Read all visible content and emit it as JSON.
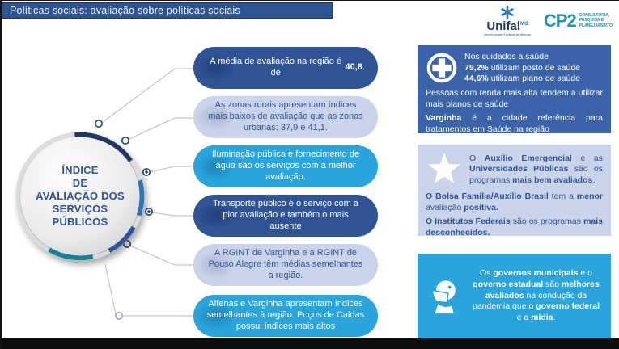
{
  "header": {
    "title": "Políticas sociais: avaliação sobre políticas sociais"
  },
  "logos": {
    "unifal": {
      "name": "Unifal",
      "sup": "MG",
      "subtitle": "Universidade Federal de Alfenas"
    },
    "cp2": {
      "name": "CP2",
      "subtitle": "CONSULTORIA,\nPESQUISA E\nPLANEJAMENTO"
    }
  },
  "hub": {
    "title": "ÍNDICE\nDE\nAVALIAÇÃO DOS\nSERVIÇOS\nPÚBLICOS"
  },
  "bubbles": [
    {
      "variant": "dark",
      "parts": [
        {
          "t": "A média de avaliação na região é de "
        },
        {
          "t": "40,8",
          "b": true
        },
        {
          "t": "."
        }
      ]
    },
    {
      "variant": "light",
      "parts": [
        {
          "t": "As zonas rurais apresentam índices mais baixos de avaliação que as zonas urbanas: 37,9 e 41,1."
        }
      ]
    },
    {
      "variant": "bright",
      "parts": [
        {
          "t": "Iluminação pública e fornecimento de água são os serviços com a melhor avaliação."
        }
      ]
    },
    {
      "variant": "dark",
      "parts": [
        {
          "t": "Transporte público é o serviço com a pior avaliação e também o mais ausente"
        }
      ]
    },
    {
      "variant": "light",
      "parts": [
        {
          "t": "A RGINT de Varginha e a RGINT de Pouso Alegre têm médias semelhantes a região."
        }
      ]
    },
    {
      "variant": "bright",
      "parts": [
        {
          "t": "Alfenas e Varginha apresentam índices semelhantes à região. Poços de Caldas possui índices mais altos"
        }
      ]
    }
  ],
  "panels": [
    {
      "icon": "health-cross-icon",
      "intro": [
        [
          {
            "t": "Nos cuidados a saúde"
          }
        ],
        [
          {
            "t": "79,2%",
            "b": true
          },
          {
            "t": " utilizam posto de saúde"
          }
        ],
        [
          {
            "t": "44,6%",
            "b": true
          },
          {
            "t": " utilizam plano de saúde"
          }
        ]
      ],
      "paragraphs": [
        [
          {
            "t": "Pessoas com renda mais alta tendem a utilizar mais planos de saúde"
          }
        ],
        [
          {
            "t": "Varginha",
            "b": true
          },
          {
            "t": " é a cidade referência para tratamentos em Saúde na região"
          }
        ]
      ]
    },
    {
      "icon": "star-icon",
      "intro": [
        [
          {
            "t": "O "
          },
          {
            "t": "Auxílio Emergencial",
            "b": true
          },
          {
            "t": " e as "
          },
          {
            "t": "Universidades Públicas",
            "b": true
          },
          {
            "t": " são os programas "
          },
          {
            "t": "mais bem avaliados",
            "b": true
          },
          {
            "t": "."
          }
        ]
      ],
      "paragraphs": [
        [
          {
            "t": "O Bolsa Família/Auxílio Brasil",
            "b": true
          },
          {
            "t": " tem a "
          },
          {
            "t": "menor",
            "b": true
          },
          {
            "t": " avaliação "
          },
          {
            "t": "positiva.",
            "b": true
          }
        ],
        [
          {
            "t": "O Institutos Federais",
            "b": true
          },
          {
            "t": " são os programas "
          },
          {
            "t": "mais desconhecidos.",
            "b": true
          }
        ]
      ]
    },
    {
      "icon": "face-mask-icon",
      "text": [
        {
          "t": "Os "
        },
        {
          "t": "governos municipais",
          "b": true
        },
        {
          "t": " e o "
        },
        {
          "t": "governo estadual",
          "b": true
        },
        {
          "t": " são "
        },
        {
          "t": "melhores avaliados",
          "b": true
        },
        {
          "t": " na condução da pandemia que o "
        },
        {
          "t": "governo federal",
          "b": true
        },
        {
          "t": " e a "
        },
        {
          "t": "mídia",
          "b": true
        },
        {
          "t": "."
        }
      ]
    }
  ],
  "colors": {
    "header_blue": "#2E5496",
    "dark_blue": "#2F5496",
    "bright_blue": "#29A4DD",
    "light_blue": "#C9D3EA",
    "panel_blue": "#3A63A9",
    "navy": "#1F3864",
    "teal_arc": "#1A7F96",
    "cp2_teal": "#2093B4"
  }
}
